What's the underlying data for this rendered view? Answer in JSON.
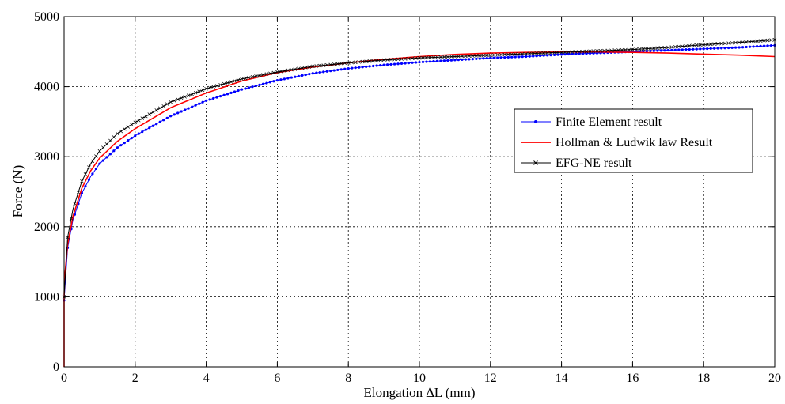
{
  "chart_data": {
    "type": "line",
    "xlabel": "Elongation ∆L (mm)",
    "ylabel": "Force (N)",
    "xlim": [
      0,
      20
    ],
    "ylim": [
      0,
      5000
    ],
    "xticks": [
      0,
      2,
      4,
      6,
      8,
      10,
      12,
      14,
      16,
      18,
      20
    ],
    "yticks": [
      0,
      1000,
      2000,
      3000,
      4000,
      5000
    ],
    "grid": true,
    "legend_position": "right",
    "series": [
      {
        "name": "Finite Element result",
        "color": "#0000ff",
        "marker": "dot",
        "x": [
          0,
          0.1,
          0.25,
          0.5,
          0.75,
          1,
          1.5,
          2,
          3,
          4,
          5,
          6,
          7,
          8,
          9,
          10,
          11,
          12,
          13,
          14,
          15,
          16,
          17,
          18,
          19,
          20
        ],
        "y": [
          950,
          1700,
          2100,
          2480,
          2720,
          2900,
          3130,
          3300,
          3580,
          3800,
          3960,
          4090,
          4190,
          4260,
          4310,
          4350,
          4380,
          4410,
          4430,
          4460,
          4480,
          4500,
          4520,
          4540,
          4560,
          4590
        ]
      },
      {
        "name": "Hollman & Ludwik law Result",
        "color": "#ff0000",
        "marker": "none",
        "x": [
          0,
          0,
          0.02,
          0.1,
          0.25,
          0.5,
          0.75,
          1,
          1.5,
          2,
          3,
          4,
          5,
          6,
          7,
          8,
          9,
          10,
          11,
          12,
          13,
          14,
          15,
          16,
          17,
          18,
          19,
          20
        ],
        "y": [
          0,
          1000,
          1300,
          1750,
          2150,
          2550,
          2800,
          2980,
          3220,
          3400,
          3700,
          3910,
          4080,
          4200,
          4280,
          4340,
          4390,
          4430,
          4460,
          4480,
          4490,
          4495,
          4495,
          4490,
          4480,
          4465,
          4450,
          4430
        ]
      },
      {
        "name": "EFG-NE result",
        "color": "#000000",
        "marker": "x",
        "x": [
          0,
          0.1,
          0.25,
          0.5,
          0.75,
          1,
          1.5,
          2,
          3,
          4,
          5,
          6,
          7,
          8,
          9,
          10,
          11,
          12,
          13,
          14,
          15,
          16,
          17,
          18,
          19,
          20
        ],
        "y": [
          1000,
          1850,
          2250,
          2650,
          2900,
          3080,
          3330,
          3490,
          3780,
          3970,
          4110,
          4210,
          4290,
          4340,
          4380,
          4410,
          4430,
          4450,
          4470,
          4490,
          4510,
          4530,
          4560,
          4600,
          4630,
          4670
        ]
      }
    ]
  }
}
